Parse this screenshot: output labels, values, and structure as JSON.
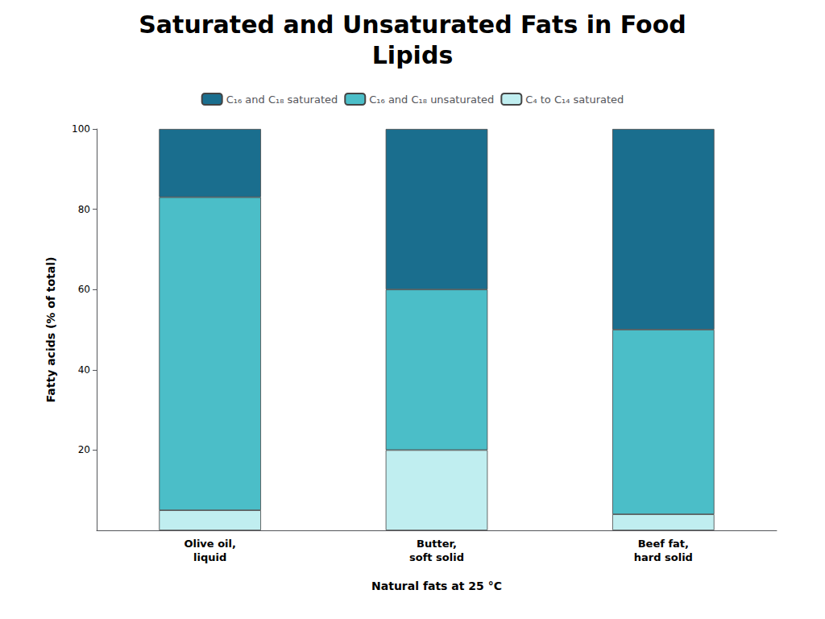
{
  "chart_data": {
    "type": "bar",
    "title": "Saturated and Unsaturated Fats in Food",
    "subtitle": "Lipids",
    "xlabel": "Natural fats at 25 °C",
    "ylabel": "Fatty acids (% of total)",
    "categories": [
      "Olive oil,\nliquid",
      "Butter,\nsoft solid",
      "Beef fat,\nhard solid"
    ],
    "series": [
      {
        "name": "C₄ to C₁₄ saturated",
        "color": "#C0EEF0",
        "values": [
          5,
          20,
          4
        ]
      },
      {
        "name": "C₁₆ and C₁₈ unsaturated",
        "color": "#4BBEC8",
        "values": [
          78,
          40,
          46
        ]
      },
      {
        "name": "C₁₆ and C₁₈ saturated",
        "color": "#1A6E8E",
        "values": [
          17,
          40,
          50
        ]
      }
    ],
    "stacked": true,
    "ylim": [
      0,
      100
    ],
    "yticks": [
      20,
      40,
      60,
      80,
      100
    ],
    "grid": false,
    "legend": "top"
  }
}
